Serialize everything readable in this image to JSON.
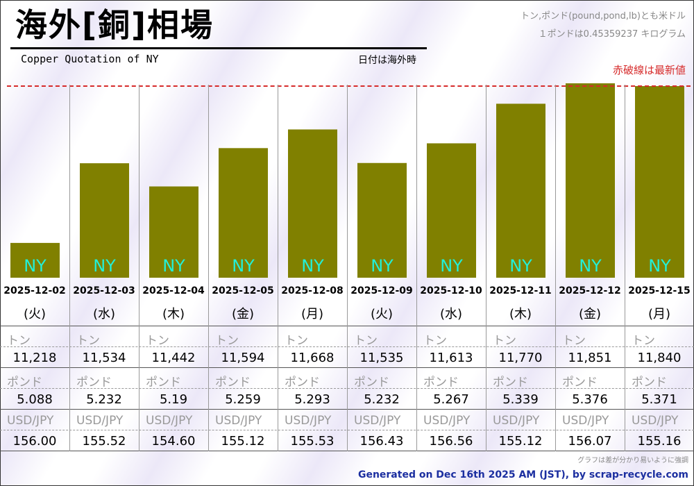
{
  "header": {
    "title": "海外[銅]相場",
    "subtitle": "Copper Quotation of NY",
    "date_note": "日付は海外時",
    "unit_note_1": "トン,ポンド(pound,pond,lb)とも米ドル",
    "unit_note_2": "１ポンドは0.45359237 キログラム",
    "latest_note": "赤破線は最新値"
  },
  "colors": {
    "bar": "#808000",
    "bar_label": "#22f0d8",
    "latest_line": "#d62a2a",
    "footer_text": "#1c2fa0"
  },
  "row_labels": {
    "ton": "トン",
    "pound": "ポンド",
    "usdjpy": "USD/JPY"
  },
  "chart_data": {
    "type": "bar",
    "categories": [
      "2025-12-02",
      "2025-12-03",
      "2025-12-04",
      "2025-12-05",
      "2025-12-08",
      "2025-12-09",
      "2025-12-10",
      "2025-12-11",
      "2025-12-12",
      "2025-12-15"
    ],
    "weekdays": [
      "(火)",
      "(水)",
      "(木)",
      "(金)",
      "(月)",
      "(火)",
      "(水)",
      "(木)",
      "(金)",
      "(月)"
    ],
    "bar_label": "NY",
    "series": [
      {
        "values": [
          11218,
          11534,
          11442,
          11594,
          11668,
          11535,
          11613,
          11770,
          11851,
          11840
        ]
      }
    ],
    "ylim": [
      11080,
      11851
    ],
    "latest_value": 11840,
    "grid": false
  },
  "table": {
    "ton": [
      "11,218",
      "11,534",
      "11,442",
      "11,594",
      "11,668",
      "11,535",
      "11,613",
      "11,770",
      "11,851",
      "11,840"
    ],
    "pound": [
      "5.088",
      "5.232",
      "5.19",
      "5.259",
      "5.293",
      "5.232",
      "5.267",
      "5.339",
      "5.376",
      "5.371"
    ],
    "usdjpy": [
      "156.00",
      "155.52",
      "154.60",
      "155.12",
      "155.53",
      "156.43",
      "156.56",
      "155.12",
      "156.07",
      "155.16"
    ]
  },
  "footer": {
    "note": "グラフは差が分かり易いように強調",
    "generated": "Generated on Dec 16th 2025 AM (JST), by scrap-recycle.com"
  }
}
